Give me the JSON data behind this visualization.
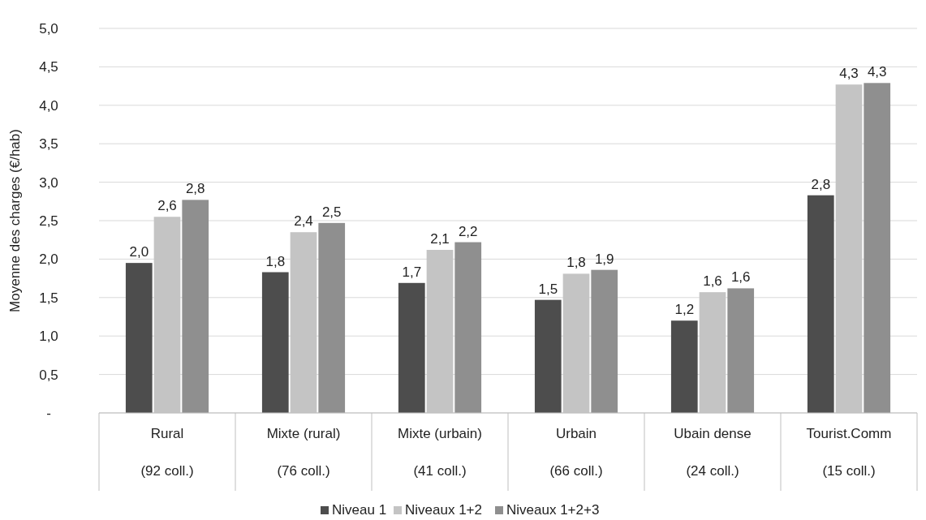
{
  "chart_data": {
    "type": "bar",
    "ylabel": "Moyenne des charges (€/hab)",
    "categories": [
      "Rural\n(92 coll.)",
      "Mixte (rural)\n(76 coll.)",
      "Mixte (urbain)\n(41 coll.)",
      "Urbain\n(66 coll.)",
      "Ubain dense\n(24 coll.)",
      "Tourist.Comm\n(15 coll.)"
    ],
    "series": [
      {
        "name": "Niveau 1",
        "color": "#4d4d4d",
        "values": [
          1.95,
          1.83,
          1.69,
          1.47,
          1.2,
          2.83
        ],
        "value_labels": [
          "2,0",
          "1,8",
          "1,7",
          "1,5",
          "1,2",
          "2,8"
        ]
      },
      {
        "name": "Niveaux 1+2",
        "color": "#c4c4c4",
        "values": [
          2.55,
          2.35,
          2.12,
          1.81,
          1.57,
          4.27
        ],
        "value_labels": [
          "2,6",
          "2,4",
          "2,1",
          "1,8",
          "1,6",
          "4,3"
        ]
      },
      {
        "name": "Niveaux 1+2+3",
        "color": "#8f8f8f",
        "values": [
          2.77,
          2.47,
          2.22,
          1.86,
          1.62,
          4.29
        ],
        "value_labels": [
          "2,8",
          "2,5",
          "2,2",
          "1,9",
          "1,6",
          "4,3"
        ]
      }
    ],
    "ylim": [
      0,
      5
    ],
    "yticks": [
      {
        "value": 0,
        "label": "-"
      },
      {
        "value": 0.5,
        "label": "0,5"
      },
      {
        "value": 1,
        "label": "1,0"
      },
      {
        "value": 1.5,
        "label": "1,5"
      },
      {
        "value": 2,
        "label": "2,0"
      },
      {
        "value": 2.5,
        "label": "2,5"
      },
      {
        "value": 3,
        "label": "3,0"
      },
      {
        "value": 3.5,
        "label": "3,5"
      },
      {
        "value": 4,
        "label": "4,0"
      },
      {
        "value": 4.5,
        "label": "4,5"
      },
      {
        "value": 5,
        "label": "5,0"
      }
    ],
    "grid": "y",
    "legend": "bottom"
  }
}
